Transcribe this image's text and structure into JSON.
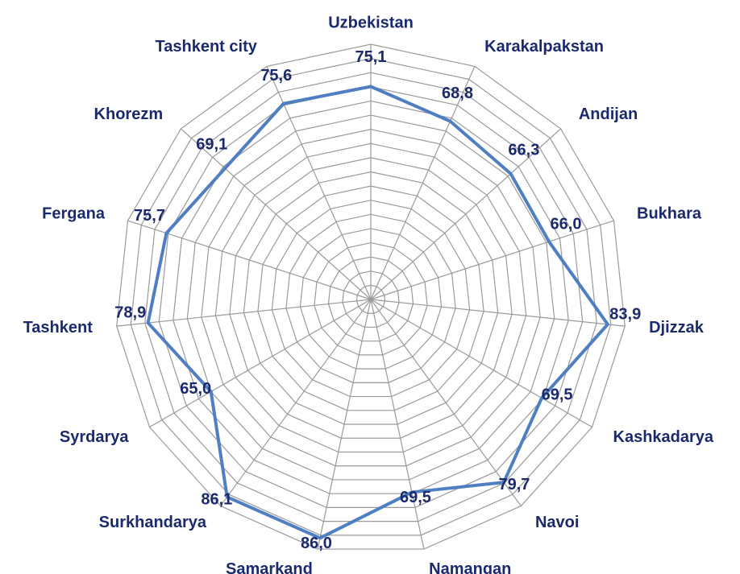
{
  "chart_data": {
    "type": "radar",
    "categories": [
      "Uzbekistan",
      "Karakalpakstan",
      "Andijan",
      "Bukhara",
      "Djizzak",
      "Kashkadarya",
      "Navoi",
      "Namangan",
      "Samarkand",
      "Surkhandarya",
      "Syrdarya",
      "Tashkent",
      "Fergana",
      "Khorezm",
      "Tashkent city"
    ],
    "values": [
      75.1,
      68.8,
      66.3,
      66.0,
      83.9,
      69.5,
      79.7,
      69.5,
      86.0,
      86.1,
      65.0,
      78.9,
      75.7,
      69.1,
      75.6
    ],
    "value_labels": [
      "75,1",
      "68,8",
      "66,3",
      "66,0",
      "83,9",
      "69,5",
      "79,7",
      "69,5",
      "86,0",
      "86,1",
      "65,0",
      "78,9",
      "75,7",
      "69,1",
      "75,6"
    ],
    "color": "#4f7fc0",
    "ylim": [
      0,
      90
    ],
    "yticks": [
      0,
      5,
      10,
      15,
      20,
      25,
      30,
      35,
      40,
      45,
      50,
      55,
      60,
      65,
      70,
      75,
      80,
      85,
      90
    ],
    "grid": true
  }
}
